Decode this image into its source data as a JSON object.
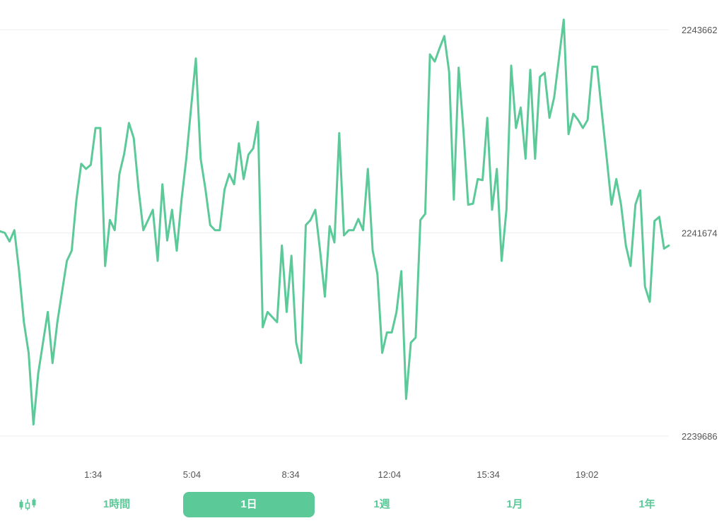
{
  "chart_data": {
    "type": "line",
    "title": "",
    "xlabel": "",
    "ylabel": "",
    "color": "#5cc999",
    "y_ticks": [
      "2243662",
      "2241674",
      "2239686"
    ],
    "ylim": [
      2239686,
      2243662
    ],
    "x_ticks": [
      "1:34",
      "5:04",
      "8:34",
      "12:04",
      "15:34",
      "19:02"
    ],
    "x_tick_positions": [
      1.5,
      5.0,
      8.5,
      12.0,
      15.5,
      19.0
    ],
    "xlim": [
      -1.8,
      21.9
    ],
    "grid": "horizontal",
    "y": [
      2241690,
      2241674,
      2241590,
      2241700,
      2241300,
      2240800,
      2240500,
      2239800,
      2240300,
      2240600,
      2240900,
      2240400,
      2240800,
      2241100,
      2241400,
      2241500,
      2242000,
      2242350,
      2242300,
      2242340,
      2242700,
      2242700,
      2241350,
      2241800,
      2241700,
      2242250,
      2242450,
      2242750,
      2242600,
      2242100,
      2241700,
      2241800,
      2241900,
      2241400,
      2242150,
      2241600,
      2241900,
      2241500,
      2242000,
      2242400,
      2242900,
      2243380,
      2242400,
      2242100,
      2241750,
      2241700,
      2241700,
      2242100,
      2242250,
      2242150,
      2242550,
      2242200,
      2242440,
      2242500,
      2242760,
      2240750,
      2240900,
      2240850,
      2240800,
      2241550,
      2240900,
      2241450,
      2240600,
      2240400,
      2241750,
      2241800,
      2241900,
      2241500,
      2241050,
      2241740,
      2241580,
      2242650,
      2241650,
      2241700,
      2241700,
      2241810,
      2241700,
      2242300,
      2241500,
      2241270,
      2240500,
      2240700,
      2240700,
      2240900,
      2241300,
      2240050,
      2240600,
      2240650,
      2241800,
      2241860,
      2243420,
      2243350,
      2243480,
      2243600,
      2243250,
      2242000,
      2243290,
      2242680,
      2241950,
      2241960,
      2242200,
      2242190,
      2242800,
      2241900,
      2242300,
      2241400,
      2241900,
      2243310,
      2242700,
      2242900,
      2242400,
      2243270,
      2242400,
      2243200,
      2243240,
      2242800,
      2243000,
      2243380,
      2243760,
      2242640,
      2242840,
      2242780,
      2242700,
      2242780,
      2243300,
      2243300,
      2242840,
      2242400,
      2241950,
      2242200,
      2241950,
      2241550,
      2241350,
      2241950,
      2242090,
      2241150,
      2241000,
      2241790,
      2241830,
      2241520,
      2241550
    ]
  },
  "tabs": [
    {
      "label": "1時間"
    },
    {
      "label": "1日"
    },
    {
      "label": "1週"
    },
    {
      "label": "1月"
    },
    {
      "label": "1年"
    }
  ],
  "active_tab": "1日",
  "accent": "#5cc999",
  "candlestick_icon": "candlestick-chart-icon"
}
